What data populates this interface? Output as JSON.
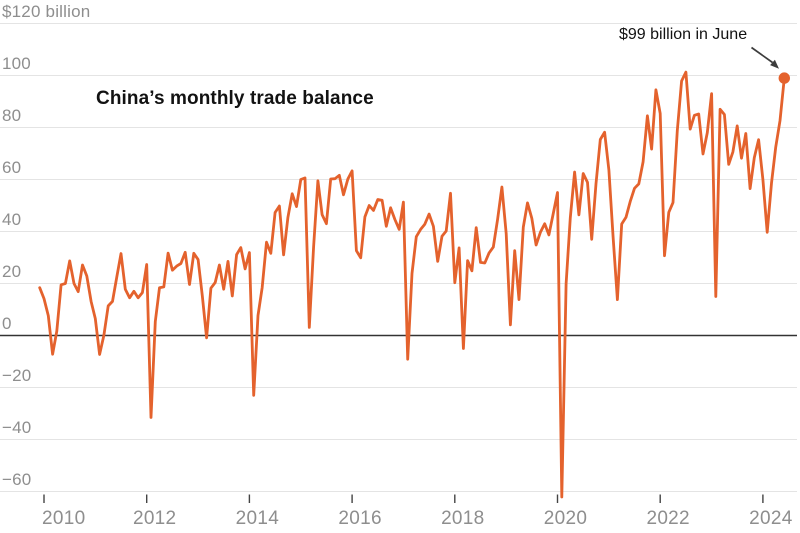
{
  "colors": {
    "background": "#ffffff",
    "line": "#e4622d",
    "end_dot": "#e4622d",
    "gridline": "#e4e4e4",
    "zero_line": "#333333",
    "tick": "#444444",
    "axis_label": "#8e8e8e",
    "text": "#121212",
    "arrow": "#3d3d3d"
  },
  "chart_data": {
    "type": "line",
    "title": "China’s monthly trade balance",
    "subtitle": "",
    "legend": "none",
    "grid": true,
    "frequency": "monthly",
    "y_axis": {
      "unit": "billion USD",
      "range_drawn": [
        -66,
        124
      ],
      "ticks": [
        {
          "value": 120,
          "label": "$120 billion"
        },
        {
          "value": 100,
          "label": "100"
        },
        {
          "value": 80,
          "label": "80"
        },
        {
          "value": 60,
          "label": "60"
        },
        {
          "value": 40,
          "label": "40"
        },
        {
          "value": 20,
          "label": "20"
        },
        {
          "value": 0,
          "label": "0"
        },
        {
          "value": -20,
          "label": "−20"
        },
        {
          "value": -40,
          "label": "−40"
        },
        {
          "value": -60,
          "label": "−60"
        }
      ]
    },
    "x_axis": {
      "range": [
        2009.9,
        2024.6
      ],
      "ticks": [
        {
          "value": 2010,
          "label": "2010"
        },
        {
          "value": 2012,
          "label": "2012"
        },
        {
          "value": 2014,
          "label": "2014"
        },
        {
          "value": 2016,
          "label": "2016"
        },
        {
          "value": 2018,
          "label": "2018"
        },
        {
          "value": 2020,
          "label": "2020"
        },
        {
          "value": 2022,
          "label": "2022"
        },
        {
          "value": 2024,
          "label": "2024"
        }
      ]
    },
    "annotation": {
      "text": "$99 billion in June",
      "target_month": "2024-06",
      "target_value": 99
    },
    "series": [
      {
        "name": "China monthly trade balance ($ billions)",
        "start": "2009-12",
        "end": "2024-06",
        "end_marker": true,
        "monthly_values_by_year": [
          {
            "year": 2009,
            "start_month": 12,
            "values": [
              18.4
            ]
          },
          {
            "year": 2010,
            "values": [
              14.2,
              7.6,
              -7.2,
              1.7,
              19.5,
              20.0,
              28.7,
              20.0,
              16.9,
              27.1,
              22.9,
              13.1
            ]
          },
          {
            "year": 2011,
            "values": [
              6.5,
              -7.3,
              0.1,
              11.4,
              13.1,
              22.3,
              31.5,
              17.8,
              14.5,
              17.0,
              14.5,
              16.5
            ]
          },
          {
            "year": 2012,
            "values": [
              27.3,
              -31.5,
              5.4,
              18.4,
              18.7,
              31.7,
              25.1,
              26.7,
              27.7,
              32.0,
              19.6,
              31.6
            ]
          },
          {
            "year": 2013,
            "values": [
              29.2,
              15.3,
              -0.9,
              18.2,
              20.4,
              27.1,
              17.8,
              28.5,
              15.2,
              31.1,
              33.8,
              25.6
            ]
          },
          {
            "year": 2014,
            "values": [
              31.9,
              -23.0,
              7.7,
              18.5,
              35.9,
              31.6,
              47.3,
              49.8,
              31.0,
              45.4,
              54.5,
              49.6
            ]
          },
          {
            "year": 2015,
            "values": [
              60.0,
              60.6,
              3.1,
              34.1,
              59.5,
              46.5,
              43.0,
              60.2,
              60.3,
              61.6,
              54.1,
              60.1
            ]
          },
          {
            "year": 2016,
            "values": [
              63.3,
              32.6,
              29.9,
              45.6,
              50.0,
              48.1,
              52.3,
              52.0,
              42.0,
              49.1,
              44.6,
              40.8
            ]
          },
          {
            "year": 2017,
            "values": [
              51.3,
              -9.1,
              23.9,
              38.0,
              40.8,
              42.8,
              46.7,
              42.0,
              28.5,
              38.2,
              40.2,
              54.7
            ]
          },
          {
            "year": 2018,
            "values": [
              20.3,
              33.7,
              -5.0,
              28.8,
              24.9,
              41.5,
              28.1,
              27.9,
              31.7,
              34.0,
              44.7,
              57.1
            ]
          },
          {
            "year": 2019,
            "values": [
              39.2,
              4.1,
              32.6,
              13.8,
              41.7,
              51.0,
              45.1,
              34.8,
              39.7,
              43.0,
              38.7,
              46.8
            ]
          },
          {
            "year": 2020,
            "values": [
              55.0,
              -62.1,
              19.9,
              45.3,
              62.9,
              46.4,
              62.3,
              58.9,
              37.0,
              58.4,
              75.4,
              78.2
            ]
          },
          {
            "year": 2021,
            "values": [
              63.6,
              37.9,
              13.8,
              42.9,
              45.5,
              51.5,
              56.6,
              58.3,
              66.8,
              84.5,
              71.7,
              94.5
            ]
          },
          {
            "year": 2022,
            "values": [
              85.4,
              30.7,
              47.4,
              51.1,
              78.8,
              97.9,
              101.3,
              79.4,
              84.7,
              85.2,
              69.8,
              78.0
            ]
          },
          {
            "year": 2023,
            "values": [
              93.0,
              15.0,
              87.0,
              85.0,
              65.8,
              70.6,
              80.6,
              68.2,
              77.7,
              56.5,
              68.4,
              75.3
            ]
          },
          {
            "year": 2024,
            "values": [
              60.0,
              39.7,
              58.6,
              72.4,
              82.6,
              99.0
            ]
          }
        ]
      }
    ]
  }
}
